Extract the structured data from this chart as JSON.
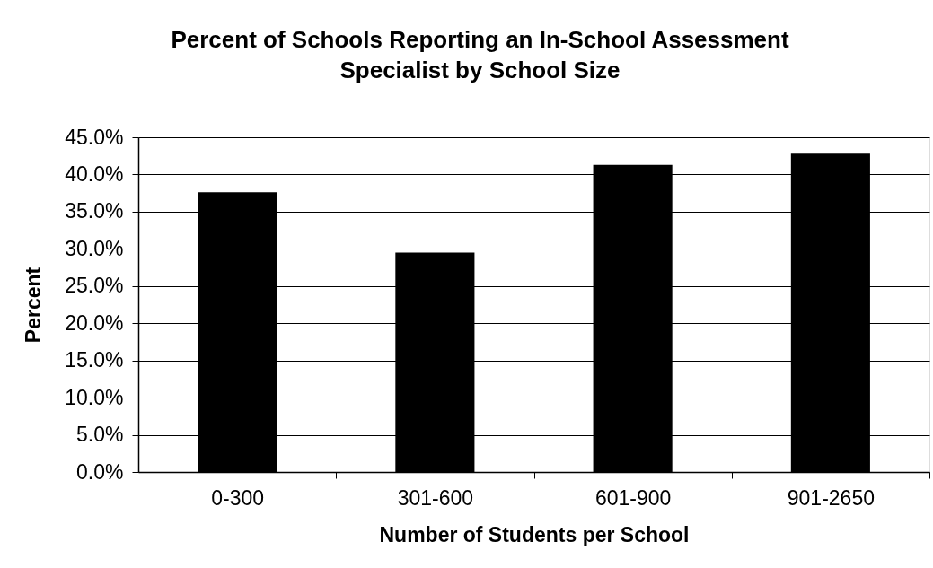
{
  "chart_data": {
    "type": "bar",
    "title": "Percent of Schools Reporting an In-School Assessment\nSpecialist by School Size",
    "xlabel": "Number of Students per School",
    "ylabel": "Percent",
    "categories": [
      "0-300",
      "301-600",
      "601-900",
      "901-2650"
    ],
    "values": [
      37.6,
      29.5,
      41.3,
      42.8
    ],
    "color": "#000000",
    "ylim": [
      0,
      45
    ],
    "yticks": [
      {
        "value": 0,
        "label": "0.0%"
      },
      {
        "value": 5,
        "label": "5.0%"
      },
      {
        "value": 10,
        "label": "10.0%"
      },
      {
        "value": 15,
        "label": "15.0%"
      },
      {
        "value": 20,
        "label": "20.0%"
      },
      {
        "value": 25,
        "label": "25.0%"
      },
      {
        "value": 30,
        "label": "30.0%"
      },
      {
        "value": 35,
        "label": "35.0%"
      },
      {
        "value": 40,
        "label": "40.0%"
      },
      {
        "value": 45,
        "label": "45.0%"
      }
    ],
    "grid": "y"
  }
}
